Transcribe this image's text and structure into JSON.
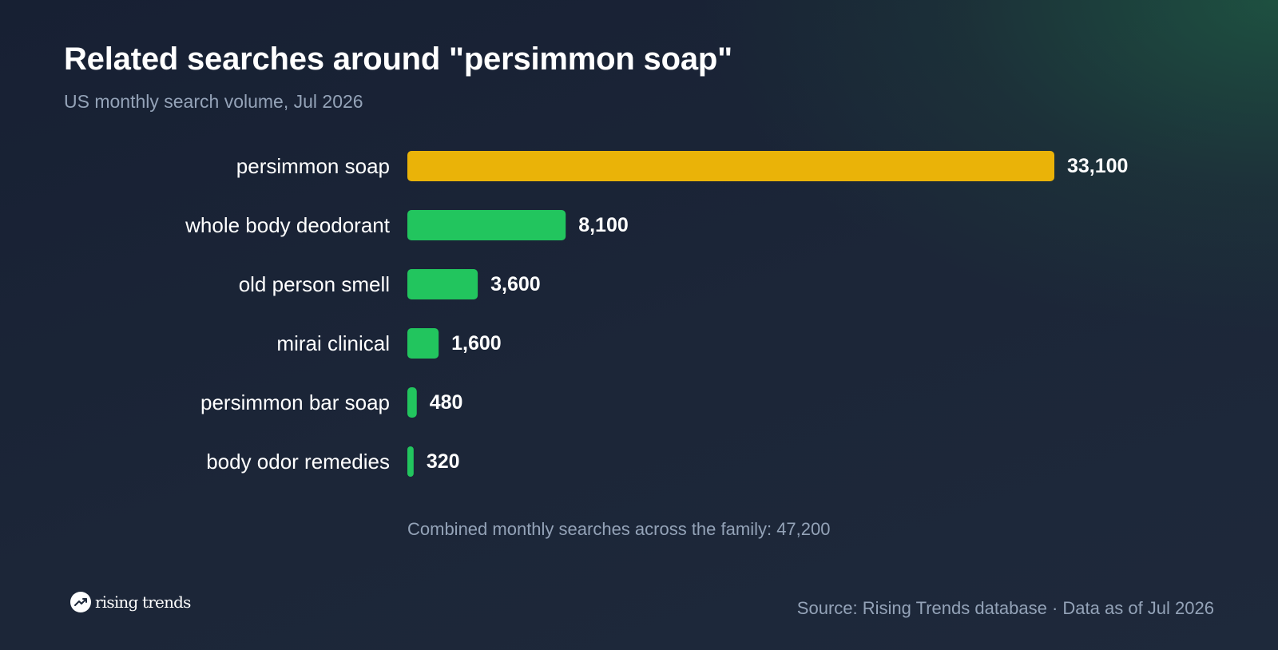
{
  "header": {
    "title": "Related searches around \"persimmon soap\"",
    "subtitle": "US monthly search volume, Jul 2026"
  },
  "colors": {
    "highlight": "#EAB308",
    "bar": "#22C55E"
  },
  "chart_data": {
    "type": "bar",
    "orientation": "horizontal",
    "categories": [
      "persimmon soap",
      "whole body deodorant",
      "old person smell",
      "mirai clinical",
      "persimmon bar soap",
      "body odor remedies"
    ],
    "values": [
      33100,
      8100,
      3600,
      1600,
      480,
      320
    ],
    "value_labels": [
      "33,100",
      "8,100",
      "3,600",
      "1,600",
      "480",
      "320"
    ],
    "highlighted_category": "persimmon soap",
    "grid": false,
    "legend": "none"
  },
  "summary": "Combined monthly searches across the family: 47,200",
  "footer": {
    "brand_name": "rising trends",
    "brand_icon": "trending-up-icon",
    "source": "Source: Rising Trends database · Data as of Jul 2026"
  }
}
